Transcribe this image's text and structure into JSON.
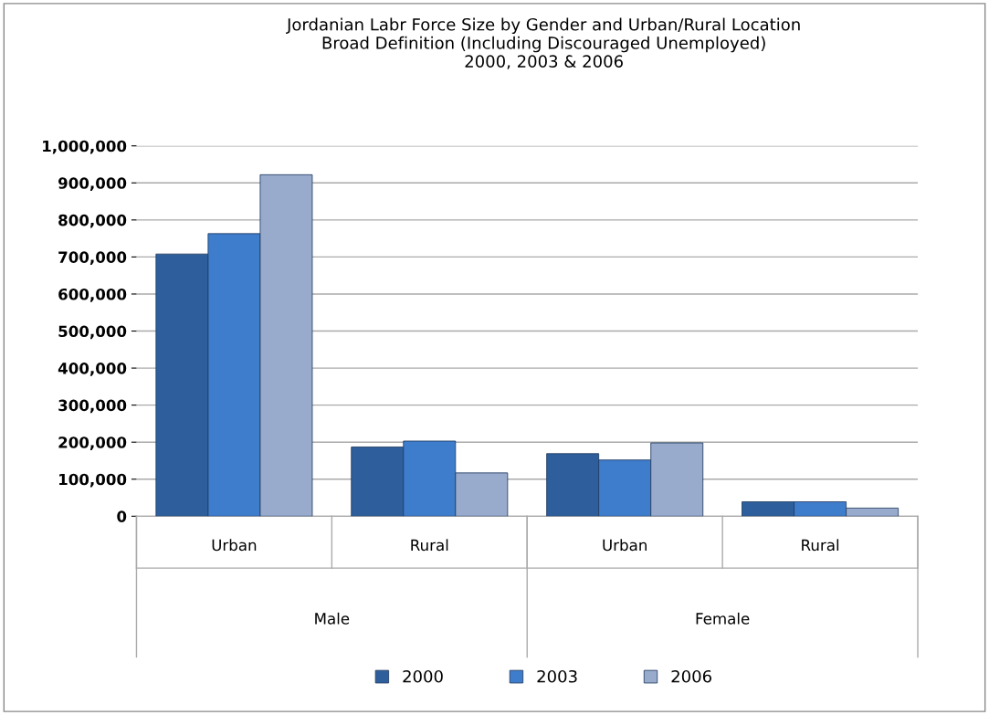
{
  "chart_data": {
    "type": "bar",
    "title": "Jordanian Labr Force Size by Gender and Urban/Rural Location\nBroad Definition (Including Discouraged Unemployed)\n2000, 2003 & 2006",
    "categories": [
      "Urban",
      "Rural",
      "Urban",
      "Rural"
    ],
    "series": [
      {
        "name": "2000",
        "color": "#2e5f9c",
        "values": [
          708000,
          187000,
          169000,
          39000
        ]
      },
      {
        "name": "2003",
        "color": "#3e7ccc",
        "values": [
          763000,
          203000,
          152000,
          39000
        ]
      },
      {
        "name": "2006",
        "color": "#98abcc",
        "values": [
          922000,
          117000,
          198000,
          22000
        ]
      }
    ],
    "annotations": [
      "Male",
      "Female"
    ],
    "ylim": [
      0,
      1000000
    ],
    "yticks": [
      {
        "value": 0,
        "label": "0"
      },
      {
        "value": 100000,
        "label": "100,000"
      },
      {
        "value": 200000,
        "label": "200,000"
      },
      {
        "value": 300000,
        "label": "300,000"
      },
      {
        "value": 400000,
        "label": "400,000"
      },
      {
        "value": 500000,
        "label": "500,000"
      },
      {
        "value": 600000,
        "label": "600,000"
      },
      {
        "value": 700000,
        "label": "700,000"
      },
      {
        "value": 800000,
        "label": "800,000"
      },
      {
        "value": 900000,
        "label": "900,000"
      },
      {
        "value": 1000000,
        "label": "1,000,000"
      }
    ],
    "grid": "y",
    "legend": "bottom"
  }
}
